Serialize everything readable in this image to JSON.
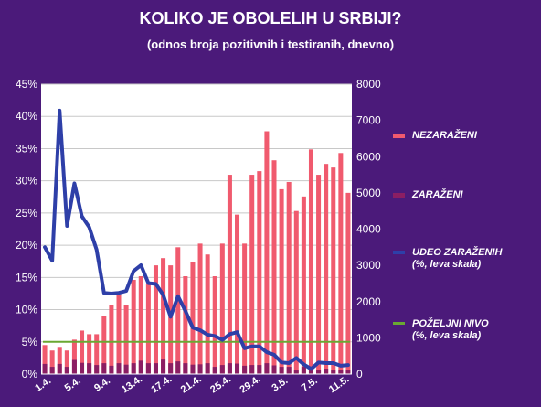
{
  "header": {
    "title": "KOLIKO JE OBOLELIH U SRBIJI?",
    "subtitle": "(odnos broja pozitivnih i testiranih, dnevno)"
  },
  "legend": {
    "negative": "NEZARAŽENI",
    "positive": "ZARAŽENI",
    "share_line1": "UDEO ZARAŽENIH",
    "share_line2": "(%, leva skala)",
    "target_line1": "POŽELJNI NIVO",
    "target_line2": "(%, leva skala)"
  },
  "colors": {
    "background": "#4b1a7a",
    "plot_area": "#ffffff",
    "negative": "#f05a6e",
    "positive": "#8b1e63",
    "share": "#2e3fa8",
    "target": "#6aa832"
  },
  "chart_data": {
    "type": "bar",
    "title": "KOLIKO JE OBOLELIH U SRBIJI?",
    "subtitle": "(odnos broja pozitivnih i testiranih, dnevno)",
    "x_tick_labels": [
      "1.4.",
      "5.4.",
      "9.4.",
      "13.4.",
      "17.4.",
      "21.4.",
      "25.4.",
      "29.4.",
      "3.5.",
      "7.5.",
      "11.5."
    ],
    "y_left": {
      "min": 0,
      "max": 45,
      "step": 5,
      "unit": "%"
    },
    "y_right": {
      "min": 0,
      "max": 8000,
      "step": 1000
    },
    "grid": true,
    "legend_position": "right",
    "categories": [
      "1.4.",
      "2.4.",
      "3.4.",
      "4.4.",
      "5.4.",
      "6.4.",
      "7.4.",
      "8.4.",
      "9.4.",
      "10.4.",
      "11.4.",
      "12.4.",
      "13.4.",
      "14.4.",
      "15.4.",
      "16.4.",
      "17.4.",
      "18.4.",
      "19.4.",
      "20.4.",
      "21.4.",
      "22.4.",
      "23.4.",
      "24.4.",
      "25.4.",
      "26.4.",
      "27.4.",
      "28.4.",
      "29.4.",
      "30.4.",
      "1.5.",
      "2.5.",
      "3.5.",
      "4.5.",
      "5.5.",
      "6.5.",
      "7.5.",
      "8.5.",
      "9.5.",
      "10.5.",
      "11.5.",
      "12.5."
    ],
    "series": [
      {
        "name": "NEZARAŽENI",
        "type": "bar",
        "axis": "right",
        "values": [
          800,
          650,
          750,
          650,
          950,
          1200,
          1100,
          1100,
          1600,
          1900,
          2200,
          1900,
          2600,
          2700,
          2500,
          3000,
          3200,
          3000,
          3500,
          2700,
          3100,
          3600,
          3300,
          2700,
          3600,
          5500,
          4400,
          3600,
          5500,
          5600,
          6700,
          5900,
          5100,
          5300,
          4500,
          4900,
          6200,
          5500,
          5800,
          5700,
          6100,
          5000
        ]
      },
      {
        "name": "ZARAŽENI",
        "type": "bar",
        "axis": "right",
        "values": [
          280,
          200,
          280,
          200,
          390,
          310,
          300,
          250,
          300,
          230,
          300,
          260,
          300,
          370,
          300,
          300,
          400,
          300,
          350,
          300,
          260,
          270,
          300,
          200,
          250,
          300,
          290,
          230,
          250,
          250,
          300,
          240,
          200,
          200,
          100,
          200,
          150,
          100,
          150,
          100,
          120,
          100
        ]
      },
      {
        "name": "UDEO ZARAŽENIH",
        "type": "line",
        "axis": "left",
        "values": [
          19.7,
          17.6,
          40.9,
          23.0,
          29.6,
          24.5,
          22.8,
          19.3,
          12.6,
          12.5,
          12.6,
          12.9,
          16.0,
          16.9,
          14.1,
          14.0,
          12.3,
          8.9,
          12.1,
          9.8,
          7.2,
          6.8,
          6.1,
          5.9,
          5.3,
          6.2,
          6.5,
          4.0,
          4.3,
          4.3,
          3.4,
          3.0,
          1.8,
          1.7,
          2.5,
          1.5,
          0.8,
          1.8,
          1.7,
          1.7,
          1.3,
          1.4
        ]
      },
      {
        "name": "POŽELJNI NIVO",
        "type": "line",
        "axis": "left",
        "values": [
          5,
          5,
          5,
          5,
          5,
          5,
          5,
          5,
          5,
          5,
          5,
          5,
          5,
          5,
          5,
          5,
          5,
          5,
          5,
          5,
          5,
          5,
          5,
          5,
          5,
          5,
          5,
          5,
          5,
          5,
          5,
          5,
          5,
          5,
          5,
          5,
          5,
          5,
          5,
          5,
          5,
          5
        ]
      }
    ]
  }
}
